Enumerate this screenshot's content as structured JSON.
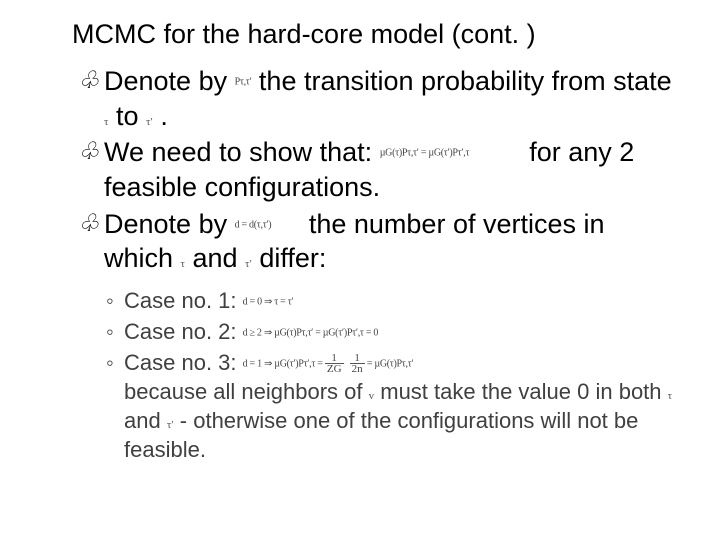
{
  "slide": {
    "title": "MCMC for the hard-core model (cont. )",
    "background_color": "#ffffff",
    "title_fontsize": 27,
    "body_fontsize": 27,
    "sub_fontsize": 22,
    "text_color": "#000000",
    "sub_text_color": "#404040",
    "bullet_glyph": "♧",
    "sub_bullet_glyph": "◦",
    "bullets": [
      {
        "pre": "Denote by",
        "sym1": "Pτ,τ′",
        "mid1": " the transition probability from state",
        "sym2": "τ",
        "mid2": " to ",
        "sym3": "τ′",
        "post": "."
      },
      {
        "pre": "We need to show that:",
        "eq": "µG(τ)Pτ,τ′ = µG(τ′)Pτ′,τ",
        "post": " for any 2 feasible configurations."
      },
      {
        "pre": "Denote by",
        "eq": "d = d(τ,τ′)",
        "mid1": " the number of vertices in which ",
        "sym1": "τ",
        "mid2": " and ",
        "sym2": "τ′",
        "post": " differ:"
      }
    ],
    "sub_bullets": [
      {
        "label": "Case no. 1:",
        "eq": "d = 0 ⇒ τ = τ′"
      },
      {
        "label": "Case no. 2:",
        "eq": "d ≥ 2 ⇒ µG(τ)Pτ,τ′ = µG(τ′)Pτ′,τ = 0"
      },
      {
        "label": "Case no. 3:",
        "eq_left": "d = 1 ⇒ µG(τ′)Pτ′,τ = ",
        "frac1_num": "1",
        "frac1_den": "ZG",
        "frac2_num": "1",
        "frac2_den": "2n",
        "eq_right": " = µG(τ)Pτ,τ′",
        "tail_a": "because all neighbors of ",
        "tail_sym1": "v",
        "tail_b": " must take the value 0 in both ",
        "tail_sym2": "τ",
        "tail_c": " and ",
        "tail_sym3": "τ′",
        "tail_d": " - otherwise one of the configurations will not be feasible."
      }
    ]
  }
}
